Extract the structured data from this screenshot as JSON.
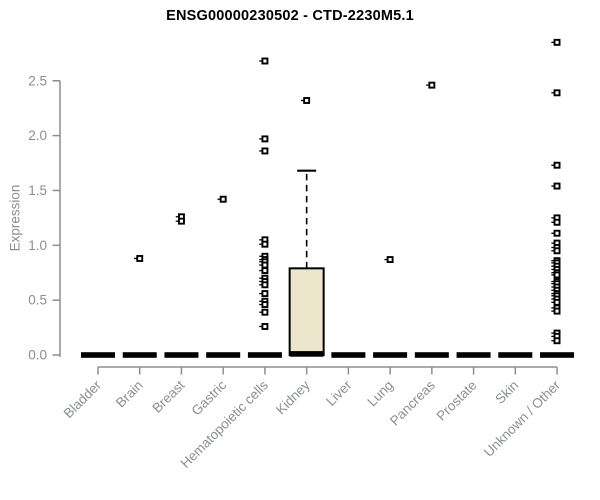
{
  "title": "ENSG00000230502 - CTD-2230M5.1",
  "chart_data": {
    "type": "boxplot",
    "title": "ENSG00000230502 - CTD-2230M5.1",
    "xlabel": "",
    "ylabel": "Expression",
    "ylim": [
      0,
      2.9
    ],
    "yticks": [
      0.0,
      0.5,
      1.0,
      1.5,
      2.0,
      2.5
    ],
    "grid": false,
    "legend": "none",
    "marker": "open-square",
    "categories": [
      "Bladder",
      "Brain",
      "Breast",
      "Gastric",
      "Hematopoietic cells",
      "Kidney",
      "Liver",
      "Lung",
      "Pancreas",
      "Prostate",
      "Skin",
      "Unknown / Other"
    ],
    "series": [
      {
        "category": "Bladder",
        "median": 0,
        "box_low": 0,
        "box_high": 0,
        "outliers": []
      },
      {
        "category": "Brain",
        "median": 0,
        "box_low": 0,
        "box_high": 0,
        "outliers": [
          0.88
        ]
      },
      {
        "category": "Breast",
        "median": 0,
        "box_low": 0,
        "box_high": 0,
        "outliers": [
          1.26,
          1.22
        ]
      },
      {
        "category": "Gastric",
        "median": 0,
        "box_low": 0,
        "box_high": 0,
        "outliers": [
          1.42
        ]
      },
      {
        "category": "Hematopoietic cells",
        "median": 0,
        "box_low": 0,
        "box_high": 0,
        "outliers": [
          2.68,
          1.97,
          1.86,
          1.05,
          1.01,
          0.9,
          0.87,
          0.85,
          0.82,
          0.77,
          0.7,
          0.67,
          0.64,
          0.56,
          0.49,
          0.46,
          0.39,
          0.26
        ]
      },
      {
        "category": "Kidney",
        "median": 0.01,
        "box_low": 0.0,
        "box_high": 0.79,
        "whisker_high": 1.68,
        "outliers": [
          2.32
        ]
      },
      {
        "category": "Liver",
        "median": 0,
        "box_low": 0,
        "box_high": 0,
        "outliers": []
      },
      {
        "category": "Lung",
        "median": 0,
        "box_low": 0,
        "box_high": 0,
        "outliers": [
          0.87
        ]
      },
      {
        "category": "Pancreas",
        "median": 0,
        "box_low": 0,
        "box_high": 0,
        "outliers": [
          2.46
        ]
      },
      {
        "category": "Prostate",
        "median": 0,
        "box_low": 0,
        "box_high": 0,
        "outliers": []
      },
      {
        "category": "Skin",
        "median": 0,
        "box_low": 0,
        "box_high": 0,
        "outliers": []
      },
      {
        "category": "Unknown / Other",
        "median": 0,
        "box_low": 0,
        "box_high": 0,
        "outliers": [
          2.85,
          2.39,
          1.73,
          1.54,
          1.25,
          1.21,
          1.11,
          1.02,
          0.98,
          0.95,
          0.86,
          0.84,
          0.81,
          0.78,
          0.75,
          0.73,
          0.67,
          0.65,
          0.62,
          0.59,
          0.56,
          0.54,
          0.51,
          0.48,
          0.43,
          0.4,
          0.2,
          0.17,
          0.13
        ]
      }
    ],
    "colors": {
      "box_fill": "#ece6cc",
      "box_stroke": "#000000",
      "median": "#000000",
      "marker": "#000000",
      "axis": "#8a8f94",
      "tick_text": "#8a8f94",
      "title_text": "#000000",
      "background": "#ffffff"
    }
  }
}
